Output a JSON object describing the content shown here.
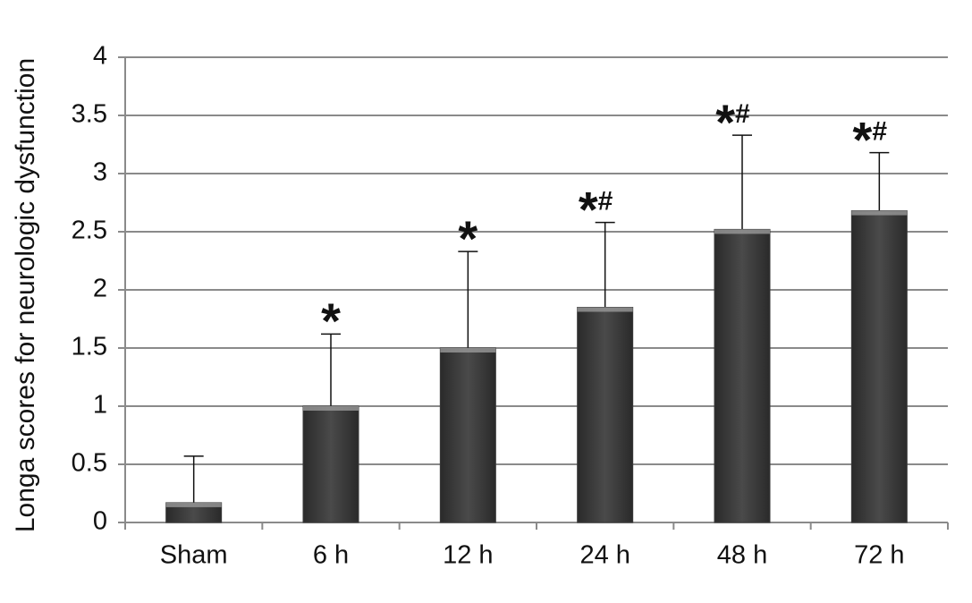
{
  "chart_data": {
    "type": "bar",
    "y_label": "Longa scores for neurologic dysfunction",
    "categories": [
      "Sham",
      "6 h",
      "12 h",
      "24 h",
      "48 h",
      "72 h"
    ],
    "values": [
      0.17,
      1.0,
      1.5,
      1.85,
      2.52,
      2.68
    ],
    "errors": [
      0.4,
      0.62,
      0.83,
      0.73,
      0.81,
      0.5
    ],
    "stars": [
      null,
      "*",
      "*",
      "*",
      "*",
      "*"
    ],
    "hashes": [
      null,
      null,
      null,
      "#",
      "#",
      "#"
    ],
    "color": "#3a3a3a",
    "ylim": [
      0,
      4
    ],
    "yticks": [
      0,
      0.5,
      1,
      1.5,
      2,
      2.5,
      3,
      3.5,
      4
    ],
    "grid": true
  }
}
